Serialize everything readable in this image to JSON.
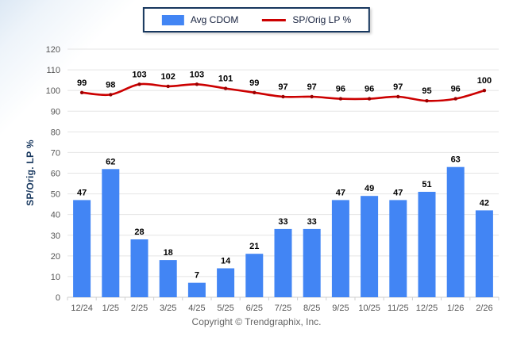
{
  "chart_data": {
    "type": "combo",
    "categories": [
      "12/24",
      "1/25",
      "2/25",
      "3/25",
      "4/25",
      "5/25",
      "6/25",
      "7/25",
      "8/25",
      "9/25",
      "10/25",
      "11/25",
      "12/25",
      "1/26",
      "2/26"
    ],
    "series": [
      {
        "name": "Avg CDOM",
        "type": "bar",
        "color": "#4285F4",
        "values": [
          47,
          62,
          28,
          18,
          7,
          14,
          21,
          33,
          33,
          47,
          49,
          47,
          51,
          63,
          42
        ]
      },
      {
        "name": "SP/Orig LP %",
        "type": "line",
        "color": "#CC0000",
        "marker_color": "#990000",
        "values": [
          99,
          98,
          103,
          102,
          103,
          101,
          99,
          97,
          97,
          96,
          96,
          97,
          95,
          96,
          100
        ]
      }
    ],
    "title": "",
    "xlabel": "",
    "ylabel": "SP/Orig. LP %",
    "ylim": [
      0,
      120
    ],
    "ytick_step": 10,
    "grid": true,
    "legend_position": "top",
    "value_labels": true
  },
  "colors": {
    "legend_border": "#17375E",
    "grid_line": "#e4e4e4",
    "axis_line": "#cfcfcf",
    "tick_text": "#555555",
    "value_text": "#000000"
  },
  "footer": {
    "copyright": "Copyright © Trendgraphix, Inc."
  }
}
